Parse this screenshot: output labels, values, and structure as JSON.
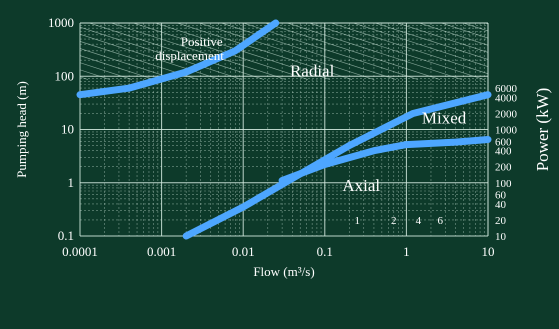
{
  "chart_data": {
    "type": "line",
    "x_scale": "log",
    "y_scale": "log",
    "xlabel": "Flow (m³/s)",
    "ylabel": "Pumping head (m)",
    "y2label": "Power (kW)",
    "xlim": [
      0.0001,
      10
    ],
    "ylim": [
      0.1,
      1000
    ],
    "x_ticks": [
      {
        "value": 0.0001,
        "label": "0.0001"
      },
      {
        "value": 0.001,
        "label": "0.001"
      },
      {
        "value": 0.01,
        "label": "0.01"
      },
      {
        "value": 0.1,
        "label": "0.1"
      },
      {
        "value": 1,
        "label": "1"
      },
      {
        "value": 10,
        "label": "10"
      }
    ],
    "y_ticks": [
      {
        "value": 0.1,
        "label": "0.1"
      },
      {
        "value": 1,
        "label": "1"
      },
      {
        "value": 10,
        "label": "10"
      },
      {
        "value": 100,
        "label": "100"
      },
      {
        "value": 1000,
        "label": "1000"
      }
    ],
    "power_labels": [
      {
        "label": "6000",
        "y": 60
      },
      {
        "label": "4000",
        "y": 40
      },
      {
        "label": "2000",
        "y": 20
      },
      {
        "label": "1000",
        "y": 10
      },
      {
        "label": "600",
        "y": 6
      },
      {
        "label": "400",
        "y": 4
      },
      {
        "label": "200",
        "y": 2
      },
      {
        "label": "100",
        "y": 1
      },
      {
        "label": "60",
        "y": 0.6
      },
      {
        "label": "40",
        "y": 0.4
      },
      {
        "label": "20",
        "y": 0.2
      },
      {
        "label": "10",
        "y": 0.1
      }
    ],
    "power_inline_labels": [
      {
        "label": "1",
        "x": 0.25,
        "y": 0.2
      },
      {
        "label": "2",
        "x": 0.7,
        "y": 0.2
      },
      {
        "label": "4",
        "x": 1.4,
        "y": 0.2
      },
      {
        "label": "6",
        "x": 2.6,
        "y": 0.2
      }
    ],
    "series": [
      {
        "values": [
          [
            0.0001,
            45
          ],
          [
            0.0004,
            60
          ],
          [
            0.002,
            120
          ],
          [
            0.008,
            300
          ],
          [
            0.025,
            1000
          ]
        ]
      },
      {
        "values": [
          [
            0.002,
            0.1
          ],
          [
            0.01,
            0.35
          ],
          [
            0.04,
            1.2
          ],
          [
            0.2,
            5
          ],
          [
            1.2,
            20
          ],
          [
            10,
            45
          ]
        ]
      },
      {
        "values": [
          [
            0.03,
            1.1
          ],
          [
            0.1,
            2.2
          ],
          [
            0.4,
            4
          ],
          [
            1,
            5.2
          ],
          [
            4,
            5.8
          ],
          [
            10,
            6.5
          ]
        ]
      }
    ],
    "region_labels": [
      {
        "text": "Positive",
        "x": 0.0031,
        "y": 370
      },
      {
        "text": "displacement",
        "x": 0.0022,
        "y": 200
      },
      {
        "text": "Radial",
        "x": 0.07,
        "y": 100
      },
      {
        "text": "Mixed",
        "x": 2.9,
        "y": 13
      },
      {
        "text": "Axial",
        "x": 0.28,
        "y": 0.7
      }
    ]
  },
  "colors": {
    "background": "#0d3a2a",
    "grid": "#cfe7dc",
    "curve": "#4da6ff",
    "text": "#ffffff"
  }
}
